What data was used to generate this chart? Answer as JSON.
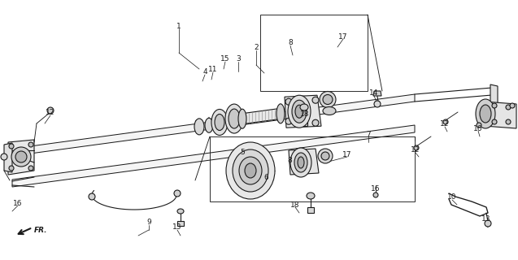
{
  "bg_color": "#ffffff",
  "lc": "#1a1a1a",
  "lw": 0.8,
  "fig_w": 6.37,
  "fig_h": 3.2,
  "dpi": 100,
  "labels": [
    [
      "1",
      220,
      32
    ],
    [
      "2",
      315,
      58
    ],
    [
      "3",
      293,
      72
    ],
    [
      "4",
      252,
      88
    ],
    [
      "5",
      298,
      187
    ],
    [
      "6",
      327,
      218
    ],
    [
      "7",
      453,
      165
    ],
    [
      "8",
      357,
      52
    ],
    [
      "8",
      356,
      197
    ],
    [
      "9",
      183,
      274
    ],
    [
      "10",
      556,
      242
    ],
    [
      "11",
      262,
      85
    ],
    [
      "12",
      62,
      138
    ],
    [
      "12",
      511,
      184
    ],
    [
      "12",
      547,
      152
    ],
    [
      "13",
      218,
      280
    ],
    [
      "13",
      598,
      270
    ],
    [
      "14",
      460,
      114
    ],
    [
      "15",
      277,
      72
    ],
    [
      "16",
      22,
      250
    ],
    [
      "16",
      462,
      232
    ],
    [
      "16",
      588,
      158
    ],
    [
      "17",
      422,
      45
    ],
    [
      "17",
      427,
      190
    ],
    [
      "18",
      375,
      140
    ],
    [
      "18",
      363,
      252
    ]
  ]
}
